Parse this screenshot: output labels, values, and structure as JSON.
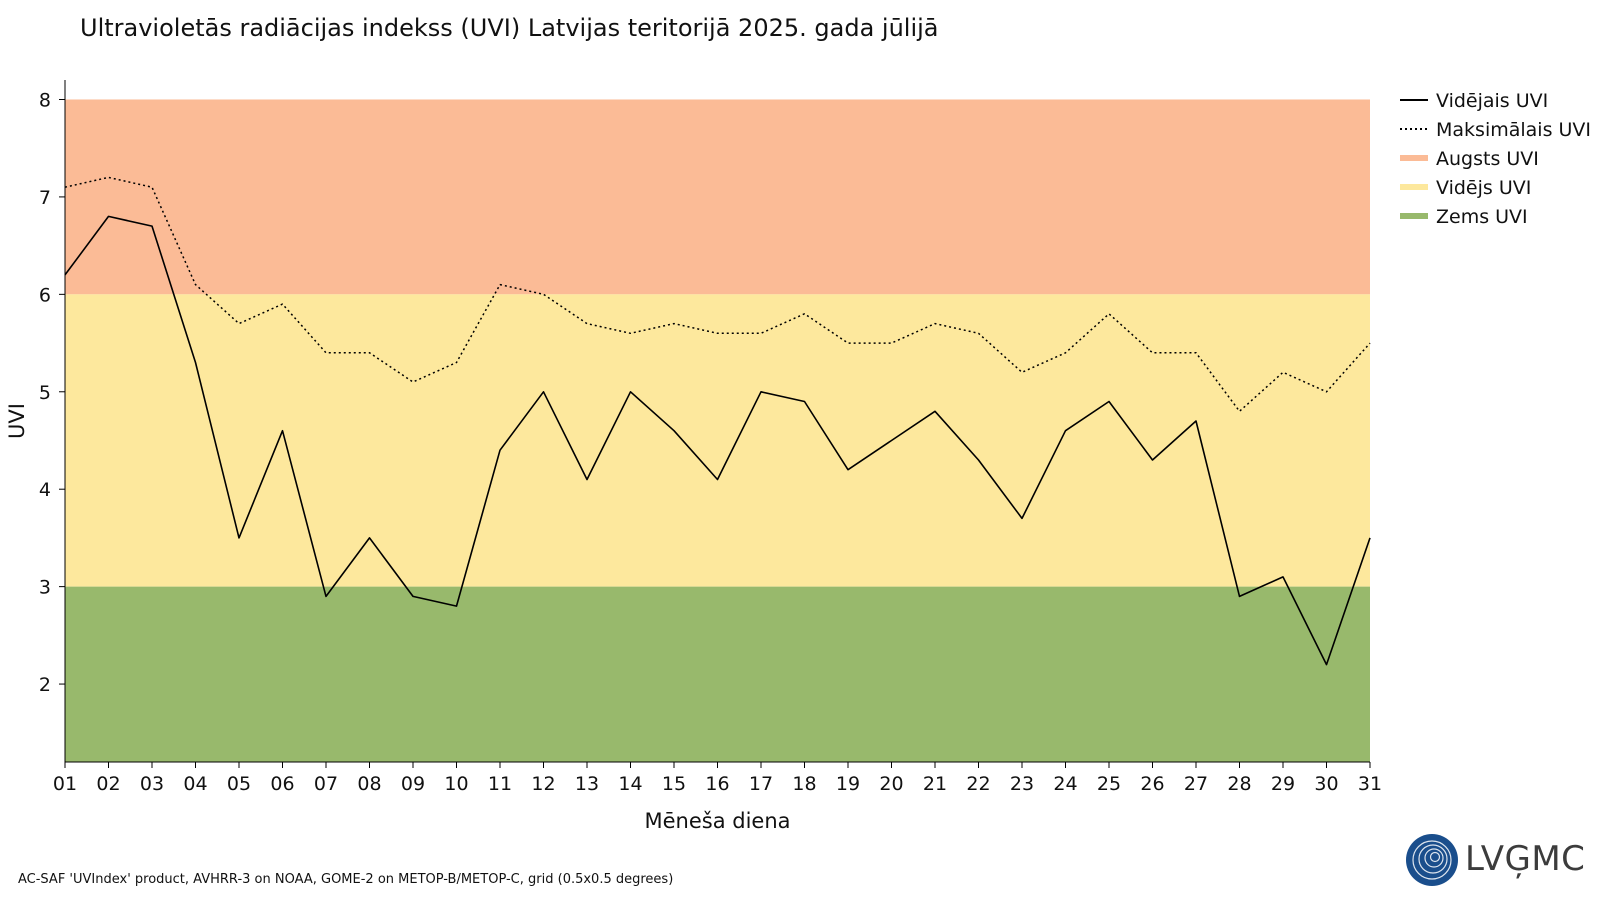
{
  "chart_data": {
    "type": "line",
    "title": "Ultravioletās radiācijas indekss (UVI) Latvijas teritorijā 2025. gada jūlijā",
    "xlabel": "Mēneša diena",
    "ylabel": "UVI",
    "ylim": [
      1.2,
      8.2
    ],
    "yticks": [
      2,
      3,
      4,
      5,
      6,
      7,
      8
    ],
    "grid": false,
    "legend_position": "top-right outside plot",
    "categories": [
      "01",
      "02",
      "03",
      "04",
      "05",
      "06",
      "07",
      "08",
      "09",
      "10",
      "11",
      "12",
      "13",
      "14",
      "15",
      "16",
      "17",
      "18",
      "19",
      "20",
      "21",
      "22",
      "23",
      "24",
      "25",
      "26",
      "27",
      "28",
      "29",
      "30",
      "31"
    ],
    "series": [
      {
        "name": "Vidējais UVI",
        "style": "solid",
        "color": "#000000",
        "values": [
          6.2,
          6.8,
          6.7,
          5.3,
          3.5,
          4.6,
          2.9,
          3.5,
          2.9,
          2.8,
          4.4,
          5.0,
          4.1,
          5.0,
          4.6,
          4.1,
          5.0,
          4.9,
          4.2,
          4.5,
          4.8,
          4.3,
          3.7,
          4.6,
          4.9,
          4.3,
          4.7,
          2.9,
          3.1,
          2.2,
          3.5
        ]
      },
      {
        "name": "Maksimālais UVI",
        "style": "dotted",
        "color": "#000000",
        "values": [
          7.1,
          7.2,
          7.1,
          6.1,
          5.7,
          5.9,
          5.4,
          5.4,
          5.1,
          5.3,
          6.1,
          6.0,
          5.7,
          5.6,
          5.7,
          5.6,
          5.6,
          5.8,
          5.5,
          5.5,
          5.7,
          5.6,
          5.2,
          5.4,
          5.8,
          5.4,
          5.4,
          4.8,
          5.2,
          5.0,
          5.5
        ]
      }
    ],
    "bands": [
      {
        "name": "Augsts UVI",
        "from": 6,
        "to": 8,
        "color": "#fbbb96"
      },
      {
        "name": "Vidējs UVI",
        "from": 3,
        "to": 6,
        "color": "#fde89d"
      },
      {
        "name": "Zems UVI",
        "from": 1.2,
        "to": 3,
        "color": "#98b96c"
      }
    ]
  },
  "footer": {
    "source": "AC-SAF 'UVIndex' product, AVHRR-3 on NOAA, GOME-2 on METOP-B/METOP-C, grid (0.5x0.5 degrees)",
    "logo_text": "LVĢMC",
    "logo_color": "#1a4e8c"
  }
}
